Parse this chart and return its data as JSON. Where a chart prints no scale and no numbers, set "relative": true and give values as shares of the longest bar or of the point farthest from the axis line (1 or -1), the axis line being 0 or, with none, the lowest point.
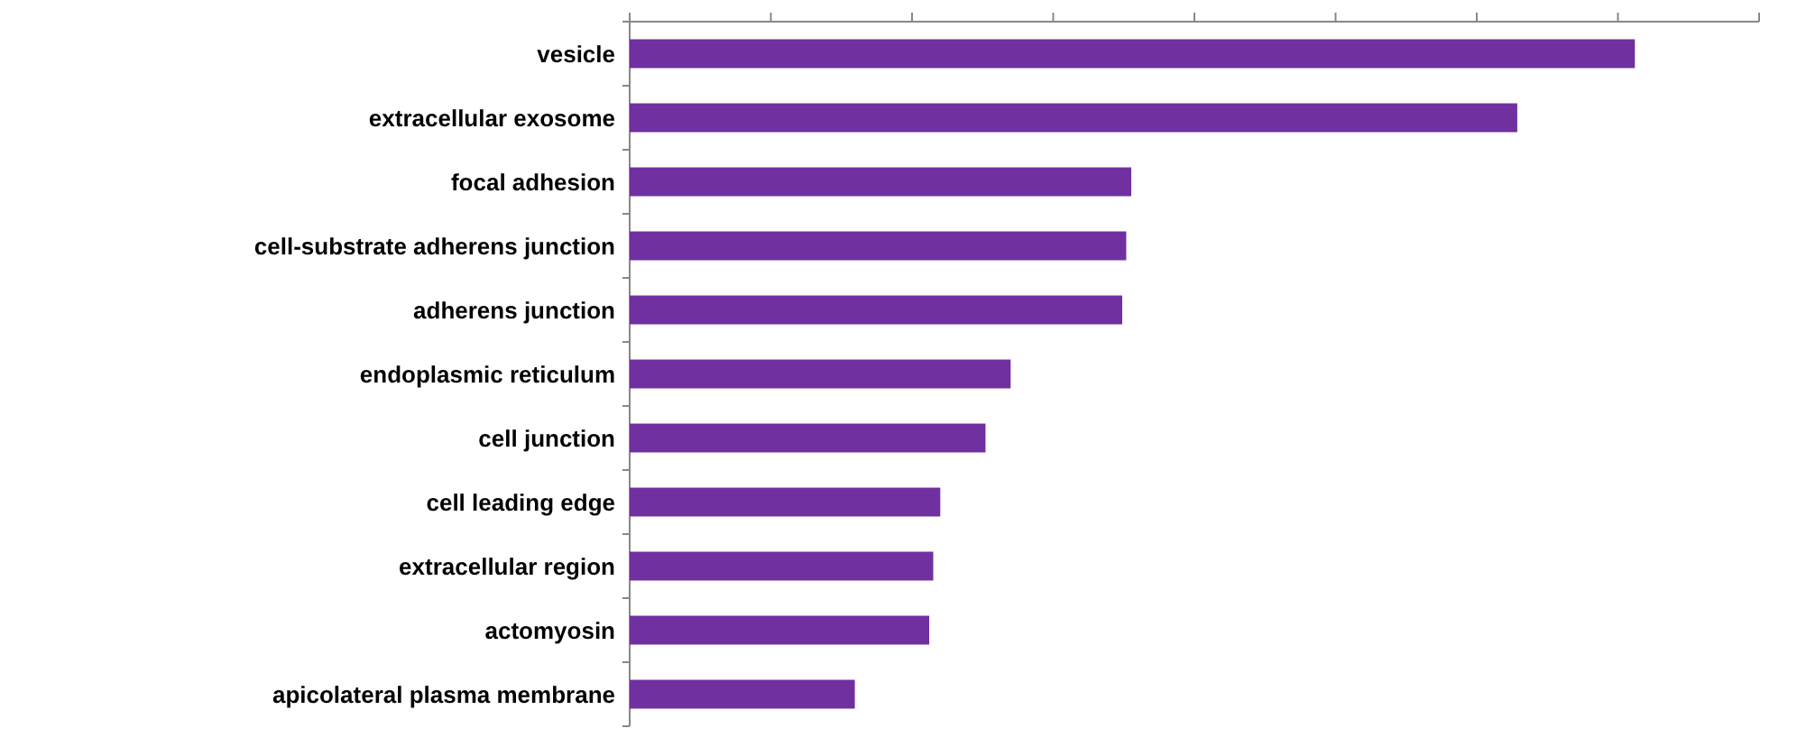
{
  "chart_data": {
    "type": "bar",
    "orientation": "horizontal",
    "relative": true,
    "color": "#7030a0",
    "categories": [
      "vesicle",
      "extracellular exosome",
      "focal adhesion",
      "cell-substrate adherens junction",
      "adherens junction",
      "endoplasmic reticulum",
      "cell junction",
      "cell leading edge",
      "extracellular region",
      "actomyosin",
      "apicolateral plasma membrane"
    ],
    "values": [
      1,
      0.883,
      0.499,
      0.494,
      0.49,
      0.379,
      0.354,
      0.309,
      0.302,
      0.298,
      0.224
    ]
  }
}
